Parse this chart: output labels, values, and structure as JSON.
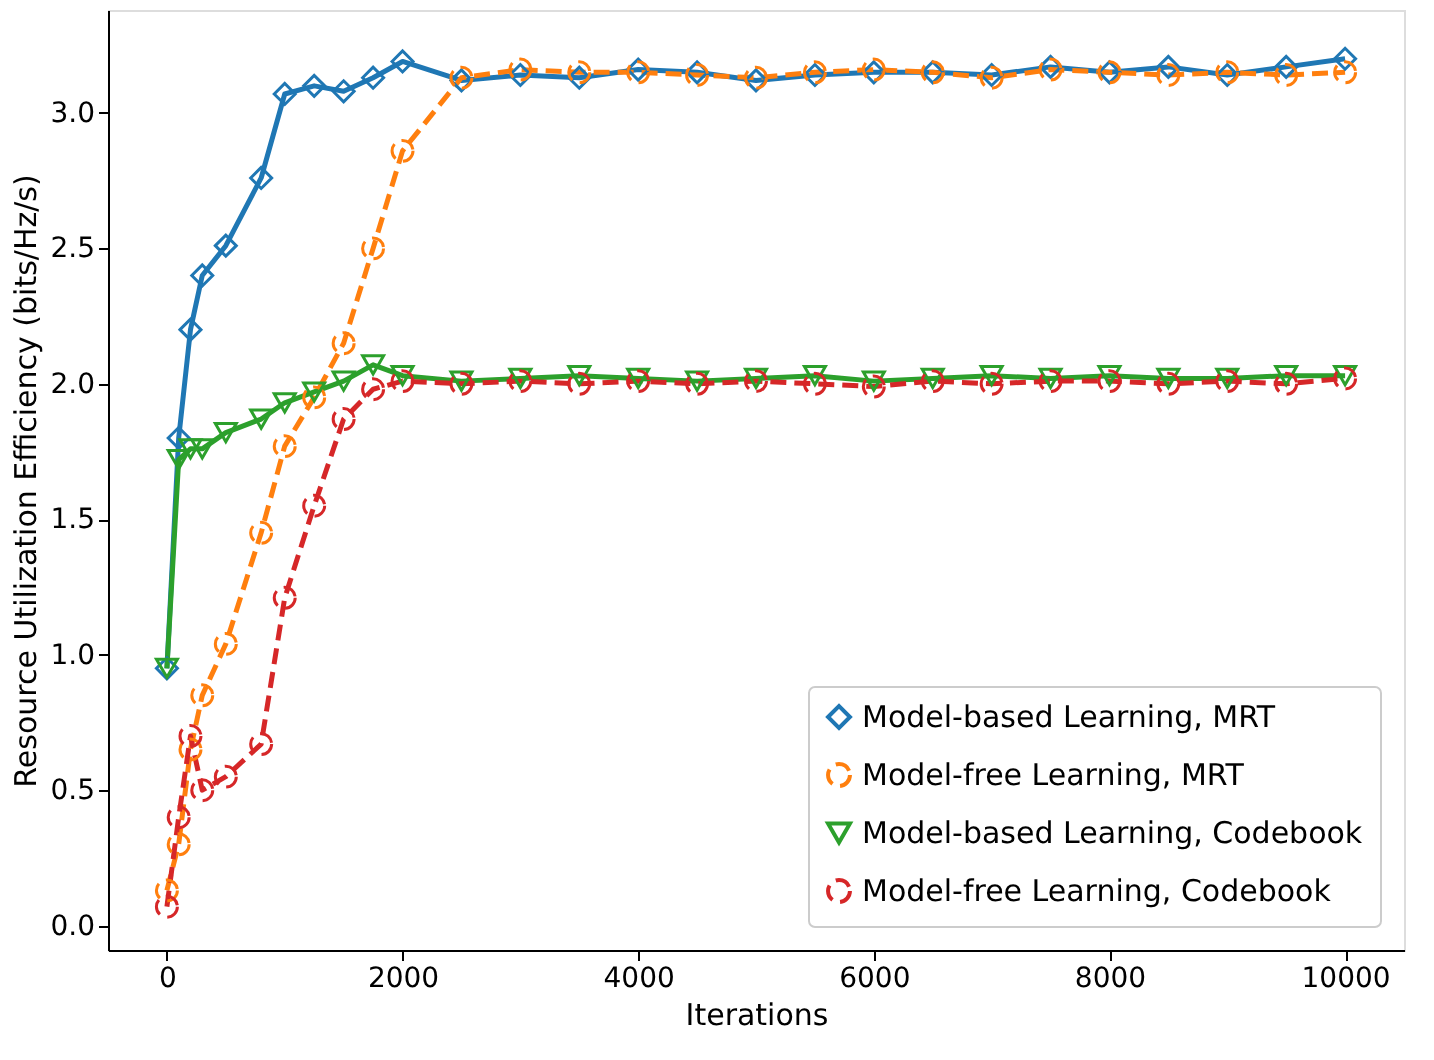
{
  "chart_data": {
    "type": "line",
    "xlabel": "Iterations",
    "ylabel": "Resource Utilization Efficiency (bits/Hz/s)",
    "xlim": [
      -500,
      10500
    ],
    "ylim": [
      -0.09,
      3.38
    ],
    "xticks": [
      0,
      {
        "value": 2000,
        "label": "2000"
      },
      {
        "value": 4000,
        "label": "4000"
      },
      {
        "value": 6000,
        "label": "6000"
      },
      {
        "value": 8000,
        "label": "8000"
      },
      {
        "value": 10000,
        "label": "10000"
      }
    ],
    "yticks": [
      {
        "value": 0,
        "label": "0.0"
      },
      0.5,
      {
        "value": 1,
        "label": "1.0"
      },
      1.5,
      {
        "value": 2,
        "label": "2.0"
      },
      2.5,
      {
        "value": 3,
        "label": "3.0"
      }
    ],
    "grid": false,
    "legend": "bottom right",
    "x": [
      0,
      100,
      200,
      300,
      500,
      800,
      1000,
      1250,
      1500,
      1750,
      2000,
      2500,
      3000,
      3500,
      4000,
      4500,
      5000,
      5500,
      6000,
      6500,
      7000,
      7500,
      8000,
      8500,
      9000,
      9500,
      10000
    ],
    "series": [
      {
        "name": "Model-based Learning, MRT",
        "color": "#1f77b4",
        "marker": "diamond",
        "line_style": "solid",
        "values": [
          0.95,
          1.8,
          2.2,
          2.4,
          2.51,
          2.76,
          3.07,
          3.1,
          3.08,
          3.13,
          3.19,
          3.12,
          3.14,
          3.13,
          3.16,
          3.15,
          3.12,
          3.14,
          3.15,
          3.15,
          3.14,
          3.17,
          3.15,
          3.17,
          3.14,
          3.17,
          3.2
        ]
      },
      {
        "name": "Model-free Learning, MRT",
        "color": "#ff7f0e",
        "marker": "circle",
        "line_style": "dashed",
        "values": [
          0.13,
          0.3,
          0.65,
          0.85,
          1.04,
          1.45,
          1.77,
          1.95,
          2.15,
          2.5,
          2.86,
          3.13,
          3.16,
          3.15,
          3.15,
          3.14,
          3.13,
          3.15,
          3.16,
          3.15,
          3.13,
          3.16,
          3.15,
          3.14,
          3.15,
          3.14,
          3.15
        ]
      },
      {
        "name": "Model-based Learning, Codebook",
        "color": "#2ca02c",
        "marker": "triangle",
        "line_style": "solid",
        "values": [
          0.95,
          1.72,
          1.76,
          1.76,
          1.82,
          1.87,
          1.93,
          1.97,
          2.01,
          2.07,
          2.03,
          2.01,
          2.02,
          2.03,
          2.02,
          2.01,
          2.02,
          2.03,
          2.01,
          2.02,
          2.03,
          2.02,
          2.03,
          2.02,
          2.02,
          2.03,
          2.03
        ]
      },
      {
        "name": "Model-free Learning, Codebook",
        "color": "#d62728",
        "marker": "circle",
        "line_style": "dashed",
        "values": [
          0.07,
          0.4,
          0.7,
          0.5,
          0.55,
          0.67,
          1.21,
          1.55,
          1.87,
          1.98,
          2.01,
          2.0,
          2.01,
          2.0,
          2.01,
          2.0,
          2.01,
          2.0,
          1.99,
          2.01,
          2.0,
          2.01,
          2.01,
          2.0,
          2.01,
          2.0,
          2.02
        ]
      }
    ]
  }
}
